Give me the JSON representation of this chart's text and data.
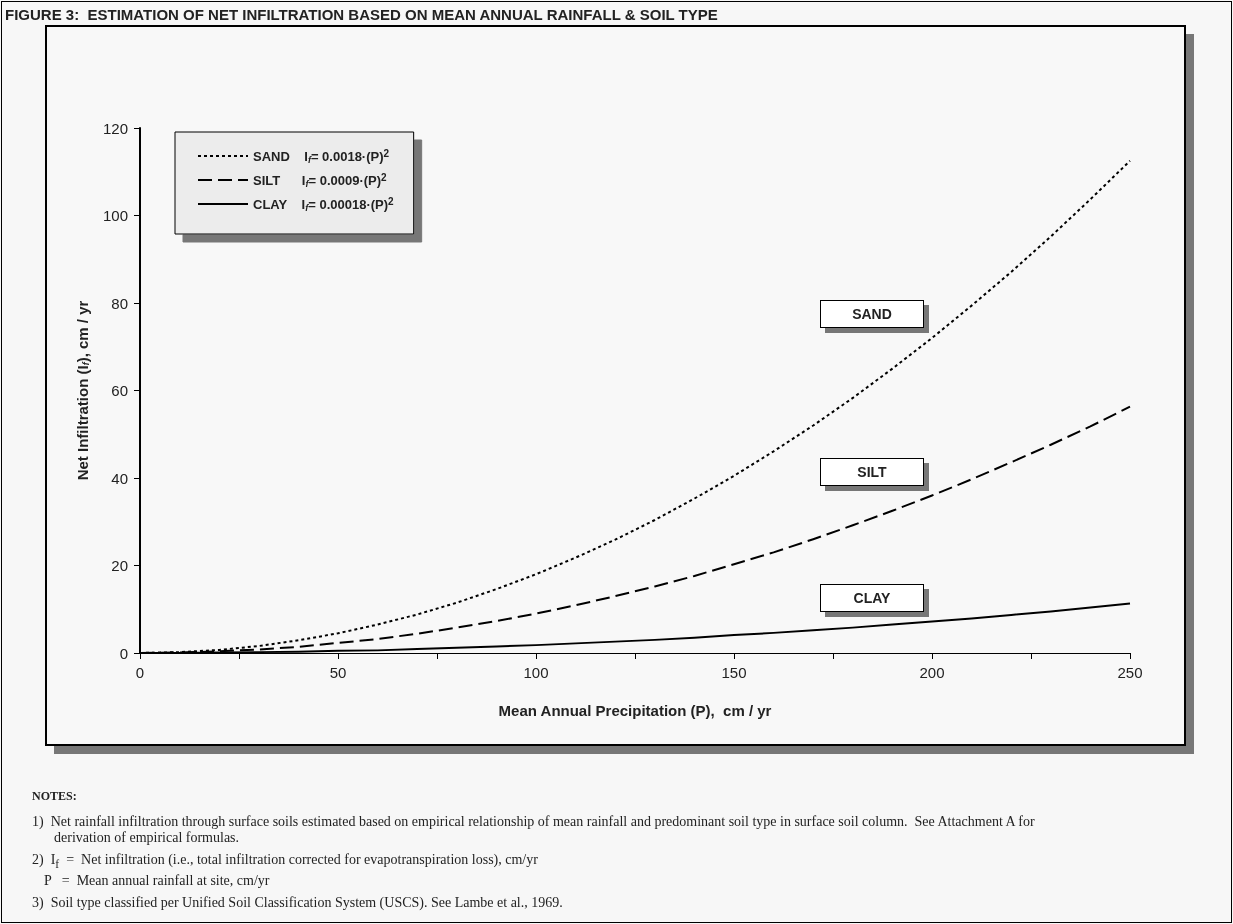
{
  "chart_data": {
    "type": "line",
    "title": "FIGURE 3:  ESTIMATION OF NET INFILTRATION BASED ON MEAN ANNUAL RAINFALL & SOIL TYPE",
    "xlabel": "Mean Annual Precipitation (P),  cm / yr",
    "ylabel": "Net Infiltration (I$_{f}$), cm / yr",
    "x": [
      0,
      10,
      20,
      30,
      40,
      50,
      60,
      70,
      80,
      90,
      100,
      110,
      120,
      130,
      140,
      150,
      160,
      170,
      180,
      190,
      200,
      210,
      220,
      230,
      240,
      250
    ],
    "series": [
      {
        "name": "SAND    I$_{f}$= 0.0018·(P)$^{2}$",
        "color": "#000000",
        "line_style": "dotted",
        "values": [
          0,
          0.2,
          0.7,
          1.6,
          2.9,
          4.5,
          6.5,
          8.8,
          11.5,
          14.6,
          18,
          21.8,
          25.9,
          30.4,
          35.3,
          40.5,
          46.1,
          52,
          58.3,
          65,
          72,
          79.4,
          87.1,
          95.2,
          103.7,
          112.5
        ]
      },
      {
        "name": "SILT      I$_{f}$= 0.0009·(P)$^{2}$",
        "color": "#000000",
        "line_style": "dashed",
        "values": [
          0,
          0.1,
          0.4,
          0.8,
          1.4,
          2.3,
          3.2,
          4.4,
          5.8,
          7.3,
          9,
          10.9,
          13,
          15.2,
          17.6,
          20.3,
          23,
          26,
          29.2,
          32.5,
          36,
          39.7,
          43.6,
          47.6,
          51.8,
          56.3
        ]
      },
      {
        "name": "CLAY    I$_{f}$= 0.00018·(P)$^{2}$",
        "color": "#000000",
        "line_style": "solid",
        "values": [
          0,
          0,
          0.1,
          0.2,
          0.3,
          0.5,
          0.6,
          0.9,
          1.2,
          1.5,
          1.8,
          2.2,
          2.6,
          3,
          3.5,
          4.1,
          4.6,
          5.2,
          5.8,
          6.5,
          7.2,
          7.9,
          8.7,
          9.5,
          10.4,
          11.3
        ]
      }
    ],
    "xlim": [
      0,
      250
    ],
    "xticks": [
      0,
      {
        "value": 25,
        "label": null
      },
      50,
      {
        "value": 75,
        "label": null
      },
      100,
      {
        "value": 125,
        "label": null
      },
      150,
      {
        "value": 175,
        "label": null
      },
      200,
      {
        "value": 225,
        "label": null
      },
      250
    ],
    "ylim": [
      0,
      120
    ],
    "yticks": [
      0,
      20,
      40,
      60,
      80,
      100,
      120
    ],
    "grid": false,
    "legend": "top left",
    "marker": "none",
    "annotations": [
      "SAND",
      "SILT",
      "CLAY",
      "NOTES:",
      "1)  Net rainfall infiltration through surface soils estimated based on empirical relationship of mean rainfall and predominant soil type in surface soil column.  See Attachment A for derivation of empirical formulas.",
      "2)  I$_{f}$  =  Net infiltration (i.e., total infiltration corrected for evapotranspiration loss), cm/yr",
      "P   =  Mean annual rainfall at site, cm/yr",
      "3)  Soil type classified per Unified Soil Classification System (USCS). See Lambe et al., 1969."
    ]
  }
}
